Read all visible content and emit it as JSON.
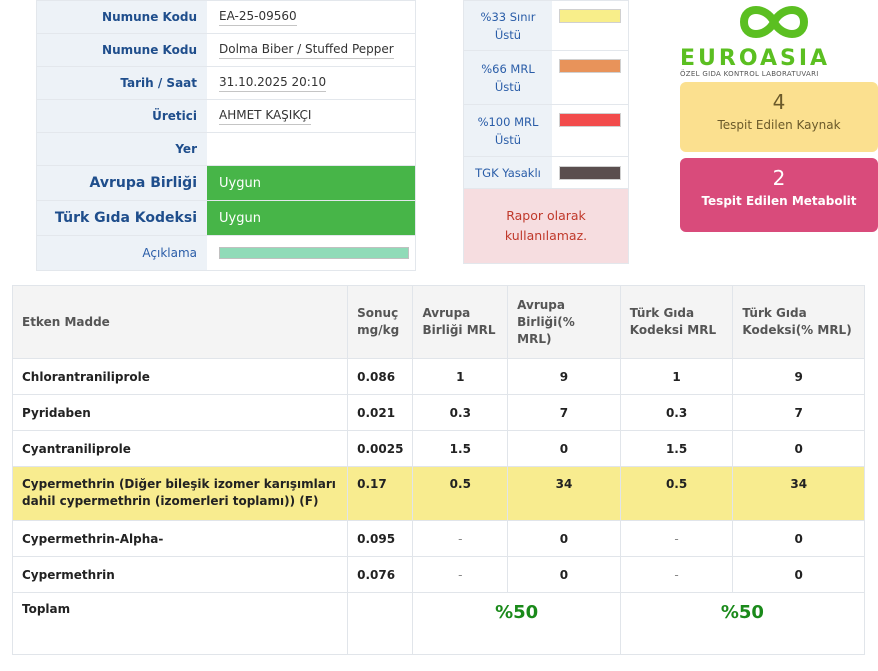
{
  "info": {
    "sample_code_label": "Numune Kodu",
    "sample_code": "EA-25-09560",
    "sample_name_label": "Numune Kodu",
    "sample_name": "Dolma Biber / Stuffed Pepper",
    "datetime_label": "Tarih / Saat",
    "datetime": "31.10.2025 20:10",
    "producer_label": "Üretici",
    "producer": "AHMET KAŞIKÇI",
    "place_label": "Yer",
    "place": "",
    "eu_label": "Avrupa Birliği",
    "eu_status": "Uygun",
    "tgk_label": "Türk Gıda Kodeksi",
    "tgk_status": "Uygun",
    "note_label": "Açıklama",
    "eu_status_color": "#47b548"
  },
  "legend": {
    "items": [
      {
        "label": "%33 Sınır Üstü",
        "color": "#f8ee8a"
      },
      {
        "label": "%66 MRL Üstü",
        "color": "#e8935a"
      },
      {
        "label": "%100 MRL Üstü",
        "color": "#f24b4b"
      },
      {
        "label": "TGK Yasaklı",
        "color": "#5a4e4e"
      }
    ],
    "warning": "Rapor olarak kullanılamaz."
  },
  "logo": {
    "name": "EUROASIA",
    "subtitle": "ÖZEL GIDA KONTROL LABORATUVARI",
    "brand_color": "#5bbf21"
  },
  "stats": {
    "sources_count": "4",
    "sources_label": "Tespit Edilen Kaynak",
    "metabolites_count": "2",
    "metabolites_label": "Tespit Edilen Metabolit"
  },
  "table": {
    "headers": {
      "substance": "Etken Madde",
      "result": "Sonuç mg/kg",
      "eu_mrl": "Avrupa Birliği MRL",
      "eu_pct": "Avrupa Birliği(% MRL)",
      "tgk_mrl": "Türk Gıda Kodeksi MRL",
      "tgk_pct": "Türk Gıda Kodeksi(% MRL)"
    },
    "rows": [
      {
        "name": "Chlorantraniliprole",
        "result": "0.086",
        "eu_mrl": "1",
        "eu_pct": "9",
        "tgk_mrl": "1",
        "tgk_pct": "9"
      },
      {
        "name": "Pyridaben",
        "result": "0.021",
        "eu_mrl": "0.3",
        "eu_pct": "7",
        "tgk_mrl": "0.3",
        "tgk_pct": "7"
      },
      {
        "name": "Cyantraniliprole",
        "result": "0.0025",
        "eu_mrl": "1.5",
        "eu_pct": "0",
        "tgk_mrl": "1.5",
        "tgk_pct": "0"
      },
      {
        "name": "Cypermethrin (Diğer bileşik izomer karışımları dahil cypermethrin (izomerleri toplamı)) (F)",
        "result": "0.17",
        "eu_mrl": "0.5",
        "eu_pct": "34",
        "tgk_mrl": "0.5",
        "tgk_pct": "34"
      },
      {
        "name": "Cypermethrin-Alpha-",
        "result": "0.095",
        "eu_mrl": "-",
        "eu_pct": "0",
        "tgk_mrl": "-",
        "tgk_pct": "0"
      },
      {
        "name": "Cypermethrin",
        "result": "0.076",
        "eu_mrl": "-",
        "eu_pct": "0",
        "tgk_mrl": "-",
        "tgk_pct": "0"
      }
    ],
    "total_label": "Toplam",
    "total_eu": "%50",
    "total_tgk": "%50",
    "highlight_color": "#f8ec8f"
  }
}
